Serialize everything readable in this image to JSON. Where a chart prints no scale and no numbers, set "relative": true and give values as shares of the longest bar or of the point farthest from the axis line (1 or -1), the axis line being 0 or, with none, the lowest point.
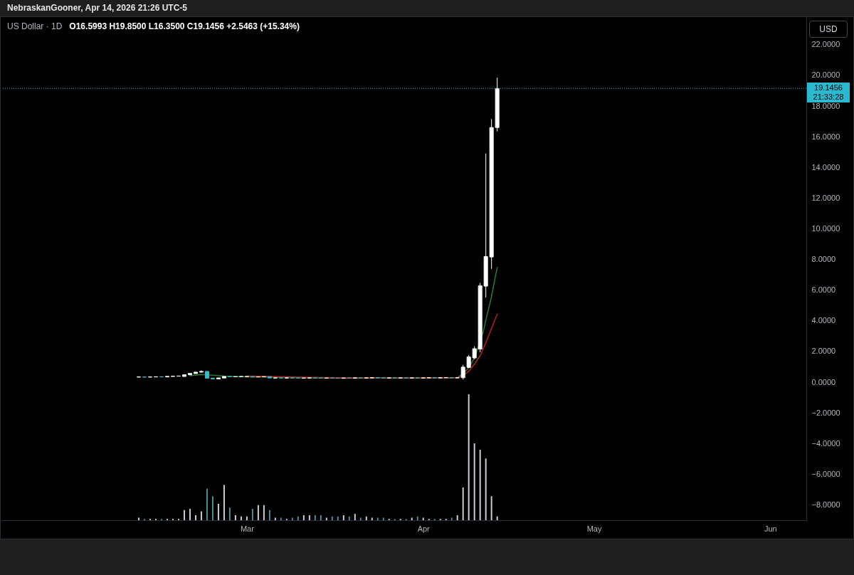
{
  "chart_data": [
    {
      "type": "candlestick",
      "title": "US Dollar · 1D",
      "subtitle": "O16.5993 H19.8500 L16.3500 C19.1456 +2.5463 (+15.34%)",
      "ylabel": "USD",
      "annotations": [
        "NebraskanGooner, Apr 14, 2026 21:26 UTC-5",
        "21:33:28"
      ],
      "tick_labels": "y",
      "x": [
        "2026-02-10",
        "2026-02-11",
        "2026-02-12",
        "2026-02-13",
        "2026-02-14",
        "2026-02-15",
        "2026-02-16",
        "2026-02-17",
        "2026-02-18",
        "2026-02-19",
        "2026-02-20",
        "2026-02-21",
        "2026-02-22",
        "2026-02-23",
        "2026-02-24",
        "2026-02-25",
        "2026-02-26",
        "2026-02-27",
        "2026-02-28",
        "2026-03-01",
        "2026-03-02",
        "2026-03-03",
        "2026-03-04",
        "2026-03-05",
        "2026-03-06",
        "2026-03-07",
        "2026-03-08",
        "2026-03-09",
        "2026-03-10",
        "2026-03-11",
        "2026-03-12",
        "2026-03-13",
        "2026-03-14",
        "2026-03-15",
        "2026-03-16",
        "2026-03-17",
        "2026-03-18",
        "2026-03-19",
        "2026-03-20",
        "2026-03-21",
        "2026-03-22",
        "2026-03-23",
        "2026-03-24",
        "2026-03-25",
        "2026-03-26",
        "2026-03-27",
        "2026-03-28",
        "2026-03-29",
        "2026-03-30",
        "2026-03-31",
        "2026-04-01",
        "2026-04-02",
        "2026-04-03",
        "2026-04-04",
        "2026-04-05",
        "2026-04-06",
        "2026-04-07",
        "2026-04-08",
        "2026-04-09",
        "2026-04-10",
        "2026-04-11",
        "2026-04-12",
        "2026-04-13",
        "2026-04-14"
      ],
      "ohlc": [
        [
          0.33,
          0.34,
          0.33,
          0.34
        ],
        [
          0.34,
          0.34,
          0.33,
          0.33
        ],
        [
          0.33,
          0.34,
          0.33,
          0.34
        ],
        [
          0.34,
          0.35,
          0.34,
          0.35
        ],
        [
          0.35,
          0.35,
          0.34,
          0.34
        ],
        [
          0.34,
          0.38,
          0.34,
          0.38
        ],
        [
          0.37,
          0.39,
          0.37,
          0.39
        ],
        [
          0.39,
          0.4,
          0.39,
          0.4
        ],
        [
          0.37,
          0.48,
          0.37,
          0.48
        ],
        [
          0.48,
          0.57,
          0.48,
          0.57
        ],
        [
          0.56,
          0.65,
          0.56,
          0.65
        ],
        [
          0.65,
          0.76,
          0.65,
          0.7
        ],
        [
          0.7,
          0.7,
          0.25,
          0.25
        ],
        [
          0.26,
          0.26,
          0.21,
          0.21
        ],
        [
          0.21,
          0.28,
          0.21,
          0.28
        ],
        [
          0.27,
          0.37,
          0.27,
          0.37
        ],
        [
          0.37,
          0.37,
          0.35,
          0.35
        ],
        [
          0.35,
          0.36,
          0.35,
          0.36
        ],
        [
          0.36,
          0.37,
          0.36,
          0.37
        ],
        [
          0.36,
          0.37,
          0.36,
          0.37
        ],
        [
          0.37,
          0.37,
          0.34,
          0.34
        ],
        [
          0.34,
          0.35,
          0.34,
          0.35
        ],
        [
          0.35,
          0.36,
          0.35,
          0.36
        ],
        [
          0.36,
          0.36,
          0.27,
          0.27
        ],
        [
          0.27,
          0.28,
          0.27,
          0.28
        ],
        [
          0.28,
          0.28,
          0.27,
          0.27
        ],
        [
          0.27,
          0.28,
          0.27,
          0.28
        ],
        [
          0.28,
          0.28,
          0.27,
          0.27
        ],
        [
          0.27,
          0.27,
          0.26,
          0.26
        ],
        [
          0.26,
          0.27,
          0.26,
          0.27
        ],
        [
          0.27,
          0.28,
          0.27,
          0.28
        ],
        [
          0.28,
          0.28,
          0.27,
          0.27
        ],
        [
          0.27,
          0.27,
          0.26,
          0.26
        ],
        [
          0.26,
          0.27,
          0.26,
          0.27
        ],
        [
          0.27,
          0.27,
          0.26,
          0.26
        ],
        [
          0.26,
          0.26,
          0.25,
          0.25
        ],
        [
          0.25,
          0.27,
          0.25,
          0.27
        ],
        [
          0.27,
          0.27,
          0.26,
          0.26
        ],
        [
          0.26,
          0.28,
          0.26,
          0.28
        ],
        [
          0.28,
          0.28,
          0.27,
          0.27
        ],
        [
          0.27,
          0.28,
          0.27,
          0.28
        ],
        [
          0.28,
          0.29,
          0.28,
          0.29
        ],
        [
          0.29,
          0.29,
          0.28,
          0.28
        ],
        [
          0.28,
          0.28,
          0.27,
          0.27
        ],
        [
          0.27,
          0.28,
          0.27,
          0.28
        ],
        [
          0.28,
          0.28,
          0.27,
          0.27
        ],
        [
          0.27,
          0.28,
          0.27,
          0.28
        ],
        [
          0.28,
          0.28,
          0.27,
          0.27
        ],
        [
          0.27,
          0.28,
          0.27,
          0.28
        ],
        [
          0.28,
          0.28,
          0.27,
          0.27
        ],
        [
          0.27,
          0.28,
          0.27,
          0.28
        ],
        [
          0.28,
          0.29,
          0.28,
          0.29
        ],
        [
          0.29,
          0.29,
          0.28,
          0.28
        ],
        [
          0.28,
          0.29,
          0.28,
          0.29
        ],
        [
          0.29,
          0.3,
          0.29,
          0.3
        ],
        [
          0.3,
          0.3,
          0.28,
          0.28
        ],
        [
          0.28,
          0.29,
          0.28,
          0.29
        ],
        [
          0.29,
          1.13,
          0.17,
          0.98
        ],
        [
          0.96,
          1.77,
          0.92,
          1.64
        ],
        [
          1.58,
          2.34,
          1.5,
          2.18
        ],
        [
          2.16,
          6.47,
          1.95,
          6.28
        ],
        [
          6.26,
          14.91,
          5.51,
          8.19
        ],
        [
          8.16,
          17.15,
          7.37,
          16.5993
        ],
        [
          16.5993,
          19.85,
          16.35,
          19.1456
        ]
      ],
      "colors": [
        "#ffffff",
        "#3ab7c9",
        "#ffffff",
        "#ffffff",
        "#3ab7c9",
        "#ffffff",
        "#ffffff",
        "#ffffff",
        "#ffffff",
        "#ffffff",
        "#ffffff",
        "#ffffff",
        "#3ab7c9",
        "#3ab7c9",
        "#ffffff",
        "#ffffff",
        "#3ab7c9",
        "#ffffff",
        "#ffffff",
        "#ffffff",
        "#3ab7c9",
        "#ffffff",
        "#ffffff",
        "#3ab7c9",
        "#ffffff",
        "#3ab7c9",
        "#ffffff",
        "#3ab7c9",
        "#3ab7c9",
        "#ffffff",
        "#ffffff",
        "#3ab7c9",
        "#3ab7c9",
        "#ffffff",
        "#3ab7c9",
        "#3ab7c9",
        "#ffffff",
        "#3ab7c9",
        "#ffffff",
        "#3ab7c9",
        "#ffffff",
        "#ffffff",
        "#3ab7c9",
        "#3ab7c9",
        "#ffffff",
        "#3ab7c9",
        "#ffffff",
        "#3ab7c9",
        "#ffffff",
        "#3ab7c9",
        "#ffffff",
        "#ffffff",
        "#3ab7c9",
        "#ffffff",
        "#ffffff",
        "#3ab7c9",
        "#ffffff",
        "#ffffff",
        "#ffffff",
        "#ffffff",
        "#ffffff",
        "#ffffff",
        "#ffffff",
        "#ffffff"
      ],
      "series": [
        {
          "type": "line",
          "color": "#2a7a3b",
          "x": [
            "2026-02-19",
            "2026-02-21",
            "2026-02-23",
            "2026-02-25",
            "2026-02-27",
            "2026-03-01",
            "2026-03-03",
            "2026-03-05",
            "2026-03-08",
            "2026-03-12",
            "2026-03-17",
            "2026-03-22",
            "2026-03-27",
            "2026-04-01",
            "2026-04-06",
            "2026-04-07",
            "2026-04-08",
            "2026-04-09",
            "2026-04-10",
            "2026-04-11T12:00",
            "2026-04-12",
            "2026-04-13",
            "2026-04-14"
          ],
          "values": [
            0.42,
            0.5,
            0.45,
            0.4,
            0.37,
            0.35,
            0.34,
            0.32,
            0.3,
            0.28,
            0.27,
            0.27,
            0.28,
            0.28,
            0.28,
            0.29,
            0.56,
            0.94,
            1.58,
            3.2,
            4.04,
            5.59,
            7.48
          ]
        },
        {
          "type": "line",
          "color": "#b3261e",
          "x": [
            "2026-03-01",
            "2026-03-04",
            "2026-03-07",
            "2026-03-12",
            "2026-03-17",
            "2026-03-22",
            "2026-03-27",
            "2026-04-01",
            "2026-04-06",
            "2026-04-07",
            "2026-04-08",
            "2026-04-09",
            "2026-04-10",
            "2026-04-11",
            "2026-04-12",
            "2026-04-13",
            "2026-04-14"
          ],
          "values": [
            0.4,
            0.38,
            0.35,
            0.31,
            0.29,
            0.28,
            0.28,
            0.28,
            0.28,
            0.28,
            0.42,
            0.71,
            1.18,
            1.72,
            2.57,
            3.5,
            4.43
          ]
        }
      ],
      "xlim": [
        "2026-01-17T11:30",
        "2026-06-06T17:00"
      ],
      "ylim": [
        -9.0,
        23.8
      ],
      "yticks": [
        {
          "value": -8,
          "label": "−8.0000"
        },
        {
          "value": -6,
          "label": "−6.0000"
        },
        {
          "value": -4,
          "label": "−4.0000"
        },
        {
          "value": -2,
          "label": "−2.0000"
        },
        {
          "value": 0,
          "label": "0.0000"
        },
        {
          "value": 2,
          "label": "2.0000"
        },
        {
          "value": 4,
          "label": "4.0000"
        },
        {
          "value": 6,
          "label": "6.0000"
        },
        {
          "value": 8,
          "label": "8.0000"
        },
        {
          "value": 10,
          "label": "10.0000"
        },
        {
          "value": 12,
          "label": "12.0000"
        },
        {
          "value": 14,
          "label": "14.0000"
        },
        {
          "value": 16,
          "label": "16.0000"
        },
        {
          "value": 18,
          "label": "18.0000"
        },
        {
          "value": 20,
          "label": "20.0000"
        },
        {
          "value": 22,
          "label": "22.0000"
        }
      ],
      "ref_lines": [
        {
          "axis": "y",
          "value": 19.1456,
          "label": "19.1456",
          "color": "#2bb9cf",
          "line_style": "dotted"
        }
      ]
    },
    {
      "type": "bar",
      "relative": true,
      "x": [
        "2026-02-10",
        "2026-02-11",
        "2026-02-12",
        "2026-02-13",
        "2026-02-14",
        "2026-02-15",
        "2026-02-16",
        "2026-02-17",
        "2026-02-18",
        "2026-02-19",
        "2026-02-20",
        "2026-02-21",
        "2026-02-22",
        "2026-02-23",
        "2026-02-24",
        "2026-02-25",
        "2026-02-26",
        "2026-02-27",
        "2026-02-28",
        "2026-03-01",
        "2026-03-02",
        "2026-03-03",
        "2026-03-04",
        "2026-03-05",
        "2026-03-06",
        "2026-03-07",
        "2026-03-08",
        "2026-03-09",
        "2026-03-10",
        "2026-03-11",
        "2026-03-12",
        "2026-03-13",
        "2026-03-14",
        "2026-03-15",
        "2026-03-16",
        "2026-03-17",
        "2026-03-18",
        "2026-03-19",
        "2026-03-20",
        "2026-03-21",
        "2026-03-22",
        "2026-03-23",
        "2026-03-24",
        "2026-03-25",
        "2026-03-26",
        "2026-03-27",
        "2026-03-28",
        "2026-03-29",
        "2026-03-30",
        "2026-03-31",
        "2026-04-01",
        "2026-04-02",
        "2026-04-03",
        "2026-04-04",
        "2026-04-05",
        "2026-04-06",
        "2026-04-07",
        "2026-04-08",
        "2026-04-09",
        "2026-04-10",
        "2026-04-11",
        "2026-04-12",
        "2026-04-13",
        "2026-04-14"
      ],
      "values": [
        0.02,
        0.01,
        0.01,
        0.01,
        0.01,
        0.01,
        0.01,
        0.01,
        0.08,
        0.09,
        0.04,
        0.07,
        0.25,
        0.19,
        0.13,
        0.28,
        0.1,
        0.04,
        0.03,
        0.03,
        0.09,
        0.12,
        0.12,
        0.08,
        0.02,
        0.02,
        0.01,
        0.02,
        0.03,
        0.04,
        0.04,
        0.04,
        0.04,
        0.02,
        0.03,
        0.03,
        0.04,
        0.03,
        0.05,
        0.02,
        0.03,
        0.02,
        0.02,
        0.02,
        0.01,
        0.01,
        0.01,
        0.01,
        0.02,
        0.03,
        0.02,
        0.01,
        0.01,
        0.01,
        0.01,
        0.02,
        0.04,
        0.26,
        1,
        0.61,
        0.56,
        0.49,
        0.19,
        0.03
      ],
      "colors": [
        "#c9ccd3",
        "#4b8d9a",
        "#c9ccd3",
        "#c9ccd3",
        "#4b8d9a",
        "#c9ccd3",
        "#c9ccd3",
        "#c9ccd3",
        "#c9ccd3",
        "#c9ccd3",
        "#c9ccd3",
        "#c9ccd3",
        "#4b8d9a",
        "#4b8d9a",
        "#c9ccd3",
        "#c9ccd3",
        "#4b8d9a",
        "#c9ccd3",
        "#c9ccd3",
        "#c9ccd3",
        "#4b8d9a",
        "#c9ccd3",
        "#c9ccd3",
        "#4b8d9a",
        "#c9ccd3",
        "#4b8d9a",
        "#c9ccd3",
        "#4b8d9a",
        "#4b8d9a",
        "#c9ccd3",
        "#c9ccd3",
        "#4b8d9a",
        "#4b8d9a",
        "#c9ccd3",
        "#4b8d9a",
        "#4b8d9a",
        "#c9ccd3",
        "#4b8d9a",
        "#c9ccd3",
        "#4b8d9a",
        "#c9ccd3",
        "#c9ccd3",
        "#4b8d9a",
        "#4b8d9a",
        "#c9ccd3",
        "#4b8d9a",
        "#c9ccd3",
        "#4b8d9a",
        "#c9ccd3",
        "#4b8d9a",
        "#c9ccd3",
        "#c9ccd3",
        "#4b8d9a",
        "#c9ccd3",
        "#c9ccd3",
        "#4b8d9a",
        "#c9ccd3",
        "#c9ccd3",
        "#c9ccd3",
        "#c9ccd3",
        "#c9ccd3",
        "#c9ccd3",
        "#c9ccd3",
        "#c9ccd3"
      ],
      "xlim": [
        "2026-01-17T11:30",
        "2026-06-06T17:00"
      ],
      "xticks": [
        {
          "value": "2026-03-01",
          "label": "Mar"
        },
        {
          "value": "2026-04-01",
          "label": "Apr"
        },
        {
          "value": "2026-05-01",
          "label": "May"
        },
        {
          "value": "2026-06-01",
          "label": "Jun"
        }
      ]
    }
  ]
}
